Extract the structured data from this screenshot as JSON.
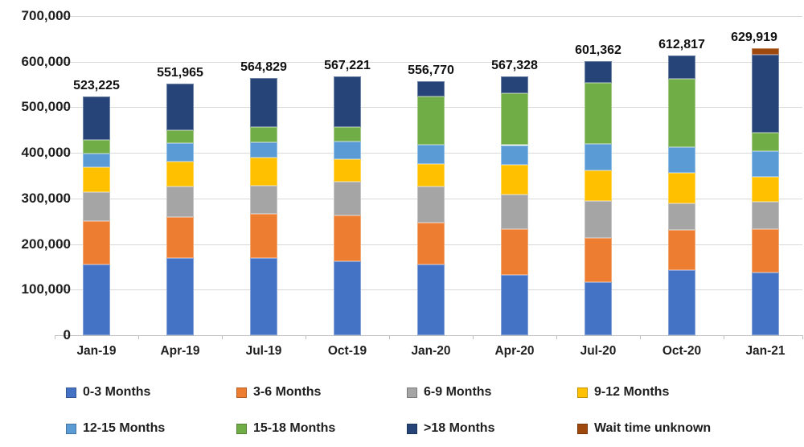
{
  "chart_data": {
    "type": "bar",
    "stacked": true,
    "title": "",
    "xlabel": "",
    "ylabel": "",
    "grid": true,
    "legend_position": "bottom",
    "ylim": [
      0,
      700000
    ],
    "ytick_step": 100000,
    "ytick_labels_top_to_bottom": [
      "700,000",
      "600,000",
      "500,000",
      "400,000",
      "300,000",
      "200,000",
      "100,000",
      "0"
    ],
    "categories": [
      "Jan-19",
      "Apr-19",
      "Jul-19",
      "Oct-19",
      "Jan-20",
      "Apr-20",
      "Jul-20",
      "Oct-20",
      "Jan-21"
    ],
    "totals": [
      523225,
      551965,
      564829,
      567221,
      556770,
      567328,
      601362,
      612817,
      629919
    ],
    "total_labels": [
      "523,225",
      "551,965",
      "564,829",
      "567,221",
      "556,770",
      "567,328",
      "601,362",
      "612,817",
      "629,919"
    ],
    "series": [
      {
        "name": "0-3 Months",
        "color": "#4472C4",
        "values": [
          156000,
          170000,
          170000,
          163000,
          155000,
          132000,
          117000,
          143000,
          137000
        ]
      },
      {
        "name": "3-6 Months",
        "color": "#ED7D31",
        "values": [
          95000,
          89000,
          97000,
          99000,
          92000,
          100000,
          96000,
          88000,
          96000
        ]
      },
      {
        "name": "6-9 Months",
        "color": "#A5A5A5",
        "values": [
          62000,
          67000,
          61000,
          75000,
          80000,
          77000,
          82000,
          58000,
          60000
        ]
      },
      {
        "name": "9-12 Months",
        "color": "#FFC000",
        "values": [
          55000,
          55000,
          61000,
          50000,
          49000,
          64000,
          66000,
          67000,
          54000
        ]
      },
      {
        "name": "12-15 Months",
        "color": "#5B9BD5",
        "values": [
          30000,
          41000,
          35000,
          38000,
          42000,
          44000,
          58000,
          56000,
          57000
        ]
      },
      {
        "name": "15-18 Months",
        "color": "#70AD47",
        "values": [
          30000,
          27000,
          32000,
          32000,
          105000,
          113000,
          134000,
          151000,
          41000
        ]
      },
      {
        "name": ">18 Months",
        "color": "#264478",
        "values": [
          95225,
          102965,
          108829,
          110221,
          33770,
          37328,
          48362,
          49817,
          171000
        ]
      },
      {
        "name": "Wait time unknown",
        "color": "#9E480E",
        "values": [
          0,
          0,
          0,
          0,
          0,
          0,
          0,
          0,
          13919
        ]
      }
    ]
  }
}
